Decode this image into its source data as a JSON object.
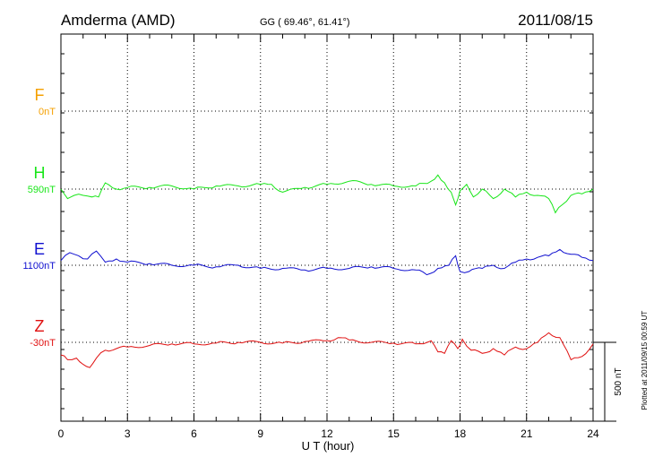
{
  "header": {
    "station": "Amderma (AMD)",
    "coords": "GG ( 69.46°,  61.41°)",
    "date": "2011/08/15"
  },
  "side_note": "Plotted at 2011/09/15 00:59 UT",
  "scale_label": "500 nT",
  "colors": {
    "F": "#f5a000",
    "H": "#19e619",
    "E": "#1010d0",
    "Z": "#e01010"
  },
  "chart_data": {
    "type": "line",
    "xlabel": "U T (hour)",
    "xlim": [
      0,
      24
    ],
    "xticks": [
      "0",
      "3",
      "6",
      "9",
      "12",
      "15",
      "18",
      "21",
      "24"
    ],
    "scale_bar_nT": 500,
    "grid": true,
    "series": [
      {
        "name": "F",
        "baseline_label": "0nT",
        "values": []
      },
      {
        "name": "H",
        "baseline_label": "590nT",
        "x": [
          0,
          0.3,
          0.6,
          1.0,
          1.4,
          1.7,
          2.0,
          2.5,
          3,
          4,
          5,
          6,
          7,
          8,
          9,
          9.5,
          10,
          11,
          12,
          13,
          14,
          15,
          16,
          16.7,
          17.0,
          17.3,
          17.6,
          17.8,
          18.0,
          18.3,
          18.6,
          19,
          19.5,
          20,
          20.5,
          21,
          21.5,
          22,
          22.3,
          22.6,
          23,
          23.5,
          24
        ],
        "values": [
          0,
          -60,
          -40,
          -40,
          -50,
          -50,
          40,
          0,
          10,
          10,
          20,
          0,
          20,
          20,
          30,
          30,
          -20,
          10,
          30,
          50,
          30,
          20,
          20,
          50,
          90,
          40,
          -20,
          -100,
          -10,
          30,
          -50,
          0,
          -60,
          0,
          -50,
          -20,
          -40,
          -60,
          -150,
          -100,
          -40,
          -30,
          0
        ]
      },
      {
        "name": "E",
        "baseline_label": "1100nT",
        "x": [
          0,
          0.4,
          0.8,
          1.2,
          1.6,
          2,
          2.5,
          3,
          4,
          5,
          6,
          7,
          8,
          9,
          10,
          11,
          12,
          13,
          14,
          15,
          16,
          16.5,
          17,
          17.5,
          17.8,
          18,
          18.4,
          19,
          19.5,
          20,
          20.5,
          21,
          21.5,
          22,
          22.5,
          23,
          23.5,
          24
        ],
        "values": [
          30,
          80,
          60,
          40,
          90,
          20,
          40,
          20,
          10,
          0,
          0,
          -10,
          0,
          -20,
          -20,
          -30,
          -20,
          -20,
          -10,
          -20,
          -30,
          -60,
          -20,
          0,
          60,
          -40,
          -40,
          -20,
          0,
          -20,
          20,
          40,
          50,
          60,
          100,
          70,
          50,
          30
        ]
      },
      {
        "name": "Z",
        "baseline_label": "-30nT",
        "x": [
          0,
          0.3,
          0.7,
          1.0,
          1.3,
          1.6,
          2,
          2.5,
          3,
          4,
          5,
          6,
          7,
          8,
          9,
          10,
          11,
          12,
          12.5,
          13,
          14,
          15,
          16,
          16.7,
          17,
          17.3,
          17.6,
          17.9,
          18.1,
          18.5,
          19,
          19.5,
          20,
          20.5,
          21,
          21.5,
          22,
          22.5,
          23,
          23.5,
          24
        ],
        "values": [
          -80,
          -110,
          -100,
          -140,
          -160,
          -100,
          -50,
          -40,
          -30,
          -20,
          -10,
          -10,
          -5,
          0,
          0,
          -5,
          5,
          10,
          30,
          15,
          0,
          -5,
          -10,
          10,
          -60,
          -70,
          10,
          -40,
          20,
          -50,
          -70,
          -40,
          -80,
          -30,
          -40,
          0,
          60,
          30,
          -110,
          -90,
          -10
        ]
      }
    ]
  }
}
